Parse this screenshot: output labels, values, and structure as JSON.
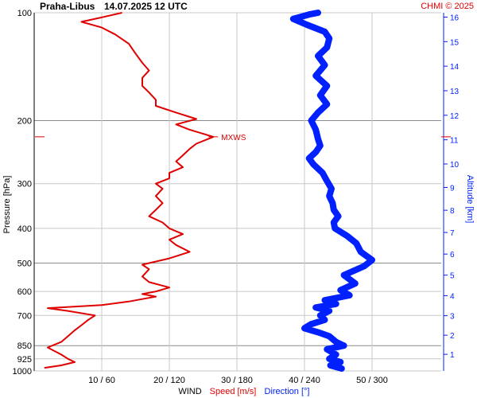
{
  "header": {
    "station": "Praha-Libus",
    "datetime": "14.07.2025 12 UTC",
    "copyright": "CHMI © 2025"
  },
  "colors": {
    "speed": "#e00000",
    "direction": "#0020ff",
    "grid": "#c8c8c8",
    "grid_major": "#8c8c8c",
    "text": "#000000"
  },
  "chart_data": {
    "type": "line",
    "title": "Praha-Libus   14.07.2025 12 UTC",
    "xlabel": "WIND",
    "xlabel_speed": "Speed [m/s]",
    "xlabel_direction": "Direction [°]",
    "ylabel": "Pressure [hPa]",
    "ylabel_right": "Altitude [km]",
    "y_scale": "log",
    "ylim": [
      1000,
      100
    ],
    "pressure_ticks": [
      100,
      200,
      300,
      400,
      500,
      600,
      700,
      850,
      925,
      1000
    ],
    "x_ticks": [
      {
        "speed": 10,
        "direction": 60,
        "label": "10 / 60"
      },
      {
        "speed": 20,
        "direction": 120,
        "label": "20 / 120"
      },
      {
        "speed": 30,
        "direction": 180,
        "label": "30 / 180"
      },
      {
        "speed": 40,
        "direction": 240,
        "label": "40 / 240"
      },
      {
        "speed": 50,
        "direction": 300,
        "label": "50 / 300"
      }
    ],
    "speed_lim": [
      0,
      60
    ],
    "altitude_ticks_km": [
      1,
      2,
      3,
      4,
      5,
      6,
      7,
      8,
      9,
      10,
      11,
      12,
      13,
      14,
      15,
      16
    ],
    "annotation": {
      "label": "MXWS",
      "pressure": 222,
      "speed": 26.5
    },
    "series": [
      {
        "name": "Speed [m/s]",
        "unit": "m/s",
        "points": [
          {
            "p": 980,
            "v": 1.5
          },
          {
            "p": 965,
            "v": 4
          },
          {
            "p": 945,
            "v": 6
          },
          {
            "p": 925,
            "v": 5
          },
          {
            "p": 900,
            "v": 4
          },
          {
            "p": 880,
            "v": 3
          },
          {
            "p": 860,
            "v": 2
          },
          {
            "p": 830,
            "v": 4
          },
          {
            "p": 800,
            "v": 5
          },
          {
            "p": 770,
            "v": 6
          },
          {
            "p": 745,
            "v": 7
          },
          {
            "p": 720,
            "v": 8
          },
          {
            "p": 700,
            "v": 9
          },
          {
            "p": 680,
            "v": 5
          },
          {
            "p": 668,
            "v": 2
          },
          {
            "p": 655,
            "v": 10
          },
          {
            "p": 640,
            "v": 14
          },
          {
            "p": 630,
            "v": 16
          },
          {
            "p": 620,
            "v": 18
          },
          {
            "p": 610,
            "v": 16
          },
          {
            "p": 600,
            "v": 18
          },
          {
            "p": 585,
            "v": 20
          },
          {
            "p": 565,
            "v": 17
          },
          {
            "p": 545,
            "v": 16
          },
          {
            "p": 520,
            "v": 17
          },
          {
            "p": 505,
            "v": 16
          },
          {
            "p": 485,
            "v": 20
          },
          {
            "p": 465,
            "v": 23
          },
          {
            "p": 445,
            "v": 21
          },
          {
            "p": 430,
            "v": 20
          },
          {
            "p": 415,
            "v": 22
          },
          {
            "p": 400,
            "v": 20
          },
          {
            "p": 385,
            "v": 19
          },
          {
            "p": 370,
            "v": 17
          },
          {
            "p": 355,
            "v": 18
          },
          {
            "p": 340,
            "v": 19
          },
          {
            "p": 325,
            "v": 18
          },
          {
            "p": 310,
            "v": 19
          },
          {
            "p": 300,
            "v": 18
          },
          {
            "p": 290,
            "v": 20
          },
          {
            "p": 280,
            "v": 20
          },
          {
            "p": 270,
            "v": 22
          },
          {
            "p": 260,
            "v": 21
          },
          {
            "p": 250,
            "v": 22
          },
          {
            "p": 240,
            "v": 23
          },
          {
            "p": 232,
            "v": 24
          },
          {
            "p": 222,
            "v": 26.5
          },
          {
            "p": 212,
            "v": 23
          },
          {
            "p": 205,
            "v": 21
          },
          {
            "p": 198,
            "v": 24
          },
          {
            "p": 190,
            "v": 21
          },
          {
            "p": 182,
            "v": 18
          },
          {
            "p": 175,
            "v": 18
          },
          {
            "p": 167,
            "v": 17
          },
          {
            "p": 160,
            "v": 16
          },
          {
            "p": 152,
            "v": 16
          },
          {
            "p": 145,
            "v": 17
          },
          {
            "p": 138,
            "v": 16
          },
          {
            "p": 130,
            "v": 15
          },
          {
            "p": 122,
            "v": 14
          },
          {
            "p": 115,
            "v": 12
          },
          {
            "p": 110,
            "v": 10
          },
          {
            "p": 106,
            "v": 7
          },
          {
            "p": 103,
            "v": 10
          },
          {
            "p": 100,
            "v": 13
          }
        ]
      },
      {
        "name": "Direction [°]",
        "unit": "deg",
        "points": [
          {
            "p": 985,
            "d": 273
          },
          {
            "p": 965,
            "d": 263
          },
          {
            "p": 945,
            "d": 272
          },
          {
            "p": 925,
            "d": 262
          },
          {
            "p": 900,
            "d": 268
          },
          {
            "p": 870,
            "d": 260
          },
          {
            "p": 850,
            "d": 275
          },
          {
            "p": 830,
            "d": 268
          },
          {
            "p": 800,
            "d": 262
          },
          {
            "p": 780,
            "d": 252
          },
          {
            "p": 760,
            "d": 240
          },
          {
            "p": 740,
            "d": 246
          },
          {
            "p": 720,
            "d": 258
          },
          {
            "p": 700,
            "d": 254
          },
          {
            "p": 680,
            "d": 262
          },
          {
            "p": 665,
            "d": 250
          },
          {
            "p": 650,
            "d": 268
          },
          {
            "p": 635,
            "d": 258
          },
          {
            "p": 615,
            "d": 280
          },
          {
            "p": 595,
            "d": 272
          },
          {
            "p": 570,
            "d": 285
          },
          {
            "p": 540,
            "d": 275
          },
          {
            "p": 510,
            "d": 293
          },
          {
            "p": 490,
            "d": 300
          },
          {
            "p": 465,
            "d": 290
          },
          {
            "p": 440,
            "d": 286
          },
          {
            "p": 420,
            "d": 278
          },
          {
            "p": 400,
            "d": 267
          },
          {
            "p": 385,
            "d": 266
          },
          {
            "p": 370,
            "d": 270
          },
          {
            "p": 355,
            "d": 266
          },
          {
            "p": 340,
            "d": 265
          },
          {
            "p": 325,
            "d": 262
          },
          {
            "p": 310,
            "d": 264
          },
          {
            "p": 295,
            "d": 260
          },
          {
            "p": 280,
            "d": 256
          },
          {
            "p": 265,
            "d": 248
          },
          {
            "p": 255,
            "d": 244
          },
          {
            "p": 245,
            "d": 250
          },
          {
            "p": 235,
            "d": 254
          },
          {
            "p": 225,
            "d": 252
          },
          {
            "p": 212,
            "d": 250
          },
          {
            "p": 200,
            "d": 246
          },
          {
            "p": 190,
            "d": 252
          },
          {
            "p": 180,
            "d": 260
          },
          {
            "p": 170,
            "d": 254
          },
          {
            "p": 160,
            "d": 260
          },
          {
            "p": 150,
            "d": 250
          },
          {
            "p": 140,
            "d": 258
          },
          {
            "p": 132,
            "d": 252
          },
          {
            "p": 125,
            "d": 260
          },
          {
            "p": 118,
            "d": 262
          },
          {
            "p": 113,
            "d": 258
          },
          {
            "p": 108,
            "d": 242
          },
          {
            "p": 104,
            "d": 230
          },
          {
            "p": 101,
            "d": 245
          },
          {
            "p": 100,
            "d": 252
          }
        ]
      }
    ]
  }
}
